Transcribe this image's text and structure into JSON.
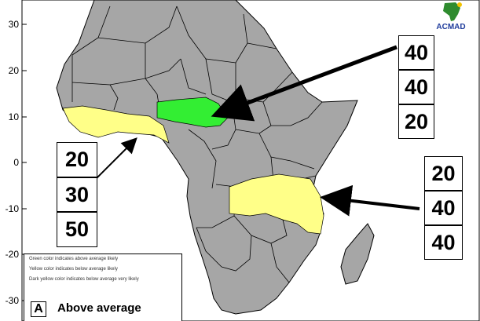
{
  "map": {
    "y_axis_ticks": [
      "30",
      "20",
      "10",
      "0",
      "-10",
      "-20",
      "-30"
    ],
    "colors": {
      "land": "#a6a6a6",
      "border": "#000000",
      "above_average": "#33ee33",
      "below_average": "#ffff88",
      "ocean": "#ffffff"
    }
  },
  "logo": {
    "text": "ACMAD"
  },
  "forecasts": [
    {
      "region": "Chad / central Sahel (green)",
      "probabilities": [
        "40",
        "40",
        "20"
      ]
    },
    {
      "region": "Gulf of Guinea coast (yellow)",
      "probabilities": [
        "20",
        "30",
        "50"
      ]
    },
    {
      "region": "Southern Tanzania / Zambia / Malawi / Mozambique (yellow)",
      "probabilities": [
        "20",
        "40",
        "40"
      ]
    }
  ],
  "legend": {
    "notes": [
      "Green color indicates above average likely",
      "Yellow color indicates below average likely",
      "Dark yellow color indicates below average very likely"
    ],
    "key_letter": "A",
    "key_label": "Above average"
  }
}
